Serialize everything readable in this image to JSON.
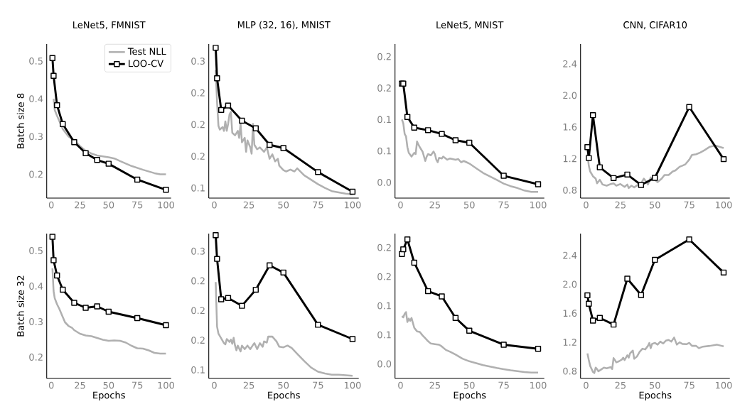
{
  "chart_data": [
    {
      "type": "line",
      "title": "LeNet5, FMNIST",
      "ylabel": "Batch size 8",
      "legend": "top right",
      "xlim": [
        -4,
        104.5
      ],
      "ylim": [
        0.137,
        0.545
      ],
      "xticks": [
        0,
        25,
        50,
        75,
        100
      ],
      "yticks": [
        0.2,
        0.3,
        0.4,
        0.5
      ],
      "series": [
        {
          "name": "Test NLL",
          "color": "#b0b0b0",
          "x": [
            2,
            3,
            5,
            10,
            15,
            20,
            25,
            30,
            35,
            40,
            50,
            55,
            60,
            70,
            80,
            90,
            95,
            100
          ],
          "values": [
            0.4,
            0.37,
            0.355,
            0.32,
            0.3,
            0.29,
            0.275,
            0.262,
            0.255,
            0.25,
            0.245,
            0.242,
            0.235,
            0.222,
            0.212,
            0.203,
            0.2,
            0.2
          ]
        },
        {
          "name": "LOO-CV",
          "color": "#000000",
          "marker": "square",
          "x": [
            1,
            2,
            5,
            10,
            20,
            30,
            40,
            50,
            75,
            100
          ],
          "values": [
            0.508,
            0.461,
            0.383,
            0.333,
            0.285,
            0.256,
            0.238,
            0.228,
            0.186,
            0.159
          ]
        }
      ]
    },
    {
      "type": "line",
      "title": "MLP (32, 16), MNIST",
      "xlim": [
        -4,
        104.5
      ],
      "ylim": [
        0.084,
        0.327
      ],
      "xticks": [
        0,
        25,
        50,
        75,
        100
      ],
      "yticks": [
        0.1,
        {
          "value": 0.15,
          "label": "0.2"
        },
        0.2,
        {
          "value": 0.25,
          "label": "0.2"
        },
        0.3
      ],
      "series": [
        {
          "color": "#b0b0b0",
          "x": [
            1,
            2,
            3,
            4,
            6,
            7,
            8,
            9,
            10,
            11,
            12,
            13,
            15,
            17,
            18,
            19,
            20,
            22,
            23,
            24,
            26,
            27,
            28,
            29,
            31,
            33,
            36,
            38,
            40,
            42,
            44,
            46,
            47,
            50,
            52,
            55,
            58,
            60,
            65,
            70,
            75,
            80,
            85,
            90,
            95,
            100
          ],
          "values": [
            0.286,
            0.235,
            0.198,
            0.192,
            0.196,
            0.19,
            0.205,
            0.19,
            0.201,
            0.216,
            0.22,
            0.187,
            0.183,
            0.19,
            0.179,
            0.201,
            0.172,
            0.179,
            0.157,
            0.175,
            0.164,
            0.154,
            0.201,
            0.168,
            0.161,
            0.164,
            0.157,
            0.164,
            0.146,
            0.153,
            0.142,
            0.146,
            0.135,
            0.128,
            0.126,
            0.129,
            0.126,
            0.131,
            0.12,
            0.113,
            0.106,
            0.1,
            0.095,
            0.093,
            0.091,
            0.09
          ]
        },
        {
          "color": "#000000",
          "marker": "square",
          "x": [
            1,
            2,
            5,
            10,
            20,
            30,
            40,
            50,
            75,
            100
          ],
          "values": [
            0.321,
            0.273,
            0.223,
            0.23,
            0.206,
            0.194,
            0.168,
            0.163,
            0.125,
            0.094
          ]
        }
      ]
    },
    {
      "type": "line",
      "title": "LeNet5, MNIST",
      "xlim": [
        -4,
        104.5
      ],
      "ylim": [
        -0.025,
        0.22
      ],
      "xticks": [
        0,
        25,
        50,
        75,
        100
      ],
      "yticks": [
        {
          "value": 0,
          "label": "0.0"
        },
        {
          "value": 0.05,
          "label": "0.1"
        },
        0.1,
        {
          "value": 0.15,
          "label": "0.2"
        },
        0.2
      ],
      "series": [
        {
          "color": "#b0b0b0",
          "x": [
            1,
            2,
            3,
            4,
            5,
            6,
            8,
            10,
            11,
            12,
            13,
            14,
            16,
            18,
            19,
            20,
            22,
            24,
            25,
            26,
            27,
            28,
            30,
            31,
            34,
            36,
            40,
            42,
            44,
            46,
            48,
            50,
            55,
            60,
            65,
            70,
            75,
            80,
            85,
            90,
            95,
            100
          ],
          "values": [
            0.1,
            0.094,
            0.077,
            0.073,
            0.056,
            0.047,
            0.041,
            0.047,
            0.045,
            0.065,
            0.06,
            0.056,
            0.049,
            0.034,
            0.041,
            0.045,
            0.043,
            0.049,
            0.045,
            0.036,
            0.032,
            0.039,
            0.038,
            0.041,
            0.036,
            0.038,
            0.036,
            0.037,
            0.032,
            0.034,
            0.032,
            0.03,
            0.0225,
            0.015,
            0.0094,
            0.0038,
            -0.002,
            -0.006,
            -0.009,
            -0.013,
            -0.015,
            -0.015
          ]
        },
        {
          "color": "#000000",
          "marker": "square",
          "x": [
            1,
            2,
            5,
            10,
            20,
            30,
            40,
            50,
            75,
            100
          ],
          "values": [
            0.157,
            0.157,
            0.104,
            0.087,
            0.083,
            0.077,
            0.067,
            0.063,
            0.0105,
            -0.003
          ]
        }
      ]
    },
    {
      "type": "line",
      "title": "CNN, CIFAR10",
      "xlim": [
        -4,
        104.5
      ],
      "ylim": [
        0.7,
        2.65
      ],
      "xticks": [
        0,
        25,
        50,
        75,
        100
      ],
      "yticks": [
        0.8,
        1.2,
        1.6,
        {
          "value": 2,
          "label": "2.0"
        },
        2.4
      ],
      "series": [
        {
          "color": "#b0b0b0",
          "x": [
            1,
            2,
            3,
            5,
            7,
            8,
            10,
            12,
            15,
            18,
            20,
            22,
            25,
            28,
            30,
            31,
            33,
            35,
            38,
            40,
            42,
            44,
            45,
            47,
            50,
            52,
            55,
            57,
            60,
            63,
            65,
            68,
            70,
            72,
            75,
            77,
            80,
            83,
            86,
            90,
            94,
            97,
            100
          ],
          "values": [
            1.26,
            1.11,
            1.037,
            0.977,
            0.947,
            0.887,
            0.932,
            0.872,
            0.857,
            0.878,
            0.887,
            0.857,
            0.878,
            0.842,
            0.872,
            0.827,
            0.857,
            0.836,
            0.872,
            0.887,
            0.947,
            0.902,
            0.872,
            0.962,
            0.932,
            0.902,
            0.947,
            0.992,
            0.992,
            1.037,
            1.05,
            1.097,
            1.11,
            1.125,
            1.186,
            1.246,
            1.255,
            1.276,
            1.306,
            1.35,
            1.366,
            1.35,
            1.333
          ]
        },
        {
          "color": "#000000",
          "marker": "square",
          "x": [
            1,
            2,
            5,
            10,
            20,
            30,
            40,
            50,
            75,
            100
          ],
          "values": [
            1.345,
            1.207,
            1.75,
            1.09,
            0.953,
            0.998,
            0.866,
            0.956,
            1.852,
            1.193
          ]
        }
      ]
    },
    {
      "type": "line",
      "ylabel": "Batch size 32",
      "xlabel": "Epochs",
      "xlim": [
        -4,
        104.5
      ],
      "ylim": [
        0.14,
        0.548
      ],
      "xticks": [
        0,
        25,
        50,
        75,
        100
      ],
      "yticks": [
        0.2,
        0.3,
        0.4,
        0.5
      ],
      "series": [
        {
          "color": "#b0b0b0",
          "x": [
            1,
            2,
            3,
            5,
            7,
            10,
            12,
            15,
            18,
            20,
            25,
            30,
            35,
            40,
            45,
            50,
            55,
            60,
            65,
            70,
            75,
            80,
            85,
            90,
            95,
            100
          ],
          "values": [
            0.45,
            0.386,
            0.366,
            0.349,
            0.336,
            0.313,
            0.298,
            0.288,
            0.283,
            0.276,
            0.266,
            0.261,
            0.259,
            0.254,
            0.249,
            0.246,
            0.247,
            0.246,
            0.241,
            0.232,
            0.225,
            0.224,
            0.219,
            0.212,
            0.21,
            0.21
          ]
        },
        {
          "color": "#000000",
          "marker": "square",
          "x": [
            1,
            2,
            5,
            10,
            20,
            30,
            40,
            50,
            75,
            100
          ],
          "values": [
            0.539,
            0.473,
            0.43,
            0.39,
            0.353,
            0.339,
            0.343,
            0.328,
            0.31,
            0.29
          ]
        }
      ]
    },
    {
      "type": "line",
      "xlabel": "Epochs",
      "xlim": [
        -4,
        104.5
      ],
      "ylim": [
        0.0856,
        0.3296
      ],
      "xticks": [
        0,
        25,
        50,
        75,
        100
      ],
      "yticks": [
        0.1,
        {
          "value": 0.15,
          "label": "0.2"
        },
        0.2,
        {
          "value": 0.25,
          "label": "0.2"
        },
        0.3
      ],
      "series": [
        {
          "color": "#b0b0b0",
          "x": [
            1,
            2,
            3,
            5,
            7,
            8,
            9,
            11,
            12,
            13,
            14,
            15,
            16,
            17,
            19,
            20,
            22,
            24,
            26,
            28,
            29,
            31,
            33,
            35,
            36,
            38,
            39,
            42,
            45,
            47,
            50,
            53,
            56,
            60,
            65,
            70,
            75,
            80,
            85,
            90,
            95,
            100
          ],
          "values": [
            0.248,
            0.173,
            0.161,
            0.153,
            0.145,
            0.143,
            0.152,
            0.147,
            0.151,
            0.144,
            0.154,
            0.141,
            0.133,
            0.141,
            0.131,
            0.141,
            0.135,
            0.141,
            0.135,
            0.142,
            0.145,
            0.135,
            0.145,
            0.139,
            0.148,
            0.146,
            0.156,
            0.156,
            0.148,
            0.139,
            0.138,
            0.141,
            0.137,
            0.127,
            0.115,
            0.104,
            0.097,
            0.094,
            0.092,
            0.092,
            0.091,
            0.09
          ]
        },
        {
          "color": "#000000",
          "marker": "square",
          "x": [
            1,
            2,
            5,
            10,
            20,
            30,
            40,
            50,
            75,
            100
          ],
          "values": [
            0.327,
            0.287,
            0.219,
            0.221,
            0.208,
            0.235,
            0.276,
            0.264,
            0.176,
            0.152
          ]
        }
      ]
    },
    {
      "type": "line",
      "xlabel": "Epochs",
      "xlim": [
        -4,
        104.5
      ],
      "ylim": [
        -0.025,
        0.224
      ],
      "xticks": [
        0,
        25,
        50,
        75,
        100
      ],
      "yticks": [
        {
          "value": 0,
          "label": "0.0"
        },
        {
          "value": 0.05,
          "label": "0.1"
        },
        0.1,
        {
          "value": 0.15,
          "label": "0.2"
        },
        0.2
      ],
      "series": [
        {
          "color": "#b0b0b0",
          "x": [
            1,
            2,
            3,
            4,
            5,
            6,
            7,
            8,
            10,
            12,
            14,
            16,
            18,
            20,
            22,
            25,
            28,
            30,
            33,
            36,
            40,
            45,
            50,
            55,
            60,
            65,
            70,
            75,
            80,
            85,
            90,
            95,
            100
          ],
          "values": [
            0.082,
            0.08,
            0.086,
            0.089,
            0.072,
            0.078,
            0.074,
            0.079,
            0.062,
            0.056,
            0.055,
            0.049,
            0.044,
            0.039,
            0.035,
            0.034,
            0.033,
            0.03,
            0.024,
            0.021,
            0.016,
            0.009,
            0.0045,
            0.0012,
            -0.002,
            -0.0045,
            -0.007,
            -0.009,
            -0.011,
            -0.0126,
            -0.014,
            -0.015,
            -0.015
          ]
        },
        {
          "color": "#000000",
          "marker": "square",
          "x": [
            1,
            2,
            5,
            10,
            20,
            30,
            40,
            50,
            75,
            100
          ],
          "values": [
            0.189,
            0.197,
            0.214,
            0.174,
            0.125,
            0.116,
            0.079,
            0.057,
            0.033,
            0.026
          ]
        }
      ]
    },
    {
      "type": "line",
      "xlabel": "Epochs",
      "xlim": [
        -4,
        104.5
      ],
      "ylim": [
        0.699,
        2.7
      ],
      "xticks": [
        0,
        25,
        50,
        75,
        100
      ],
      "yticks": [
        0.8,
        1.2,
        1.6,
        {
          "value": 2,
          "label": "2.0"
        },
        2.4
      ],
      "series": [
        {
          "color": "#b0b0b0",
          "x": [
            1,
            2,
            3,
            5,
            6,
            7,
            8,
            9,
            11,
            13,
            15,
            18,
            19,
            20,
            21,
            22,
            24,
            26,
            27,
            28,
            30,
            31,
            32,
            34,
            35,
            37,
            39,
            41,
            43,
            45,
            46,
            47,
            48,
            50,
            52,
            54,
            56,
            58,
            60,
            62,
            64,
            66,
            68,
            70,
            73,
            75,
            77,
            80,
            82,
            85,
            90,
            95,
            100
          ],
          "values": [
            1.045,
            0.953,
            0.872,
            0.79,
            0.774,
            0.849,
            0.829,
            0.797,
            0.823,
            0.849,
            0.839,
            0.856,
            0.829,
            0.98,
            0.953,
            0.921,
            0.937,
            0.96,
            0.986,
            0.953,
            1.019,
            0.986,
            1.045,
            1.084,
            0.97,
            1.002,
            1.068,
            1.11,
            1.1,
            1.149,
            1.19,
            1.117,
            1.176,
            1.19,
            1.166,
            1.208,
            1.182,
            1.221,
            1.231,
            1.208,
            1.264,
            1.166,
            1.198,
            1.176,
            1.172,
            1.19,
            1.149,
            1.149,
            1.117,
            1.139,
            1.149,
            1.166,
            1.143
          ]
        },
        {
          "color": "#000000",
          "marker": "square",
          "x": [
            1,
            2,
            5,
            10,
            20,
            30,
            40,
            50,
            75,
            100
          ],
          "values": [
            1.848,
            1.731,
            1.499,
            1.535,
            1.443,
            2.077,
            1.851,
            2.338,
            2.619,
            2.162
          ]
        }
      ]
    }
  ]
}
